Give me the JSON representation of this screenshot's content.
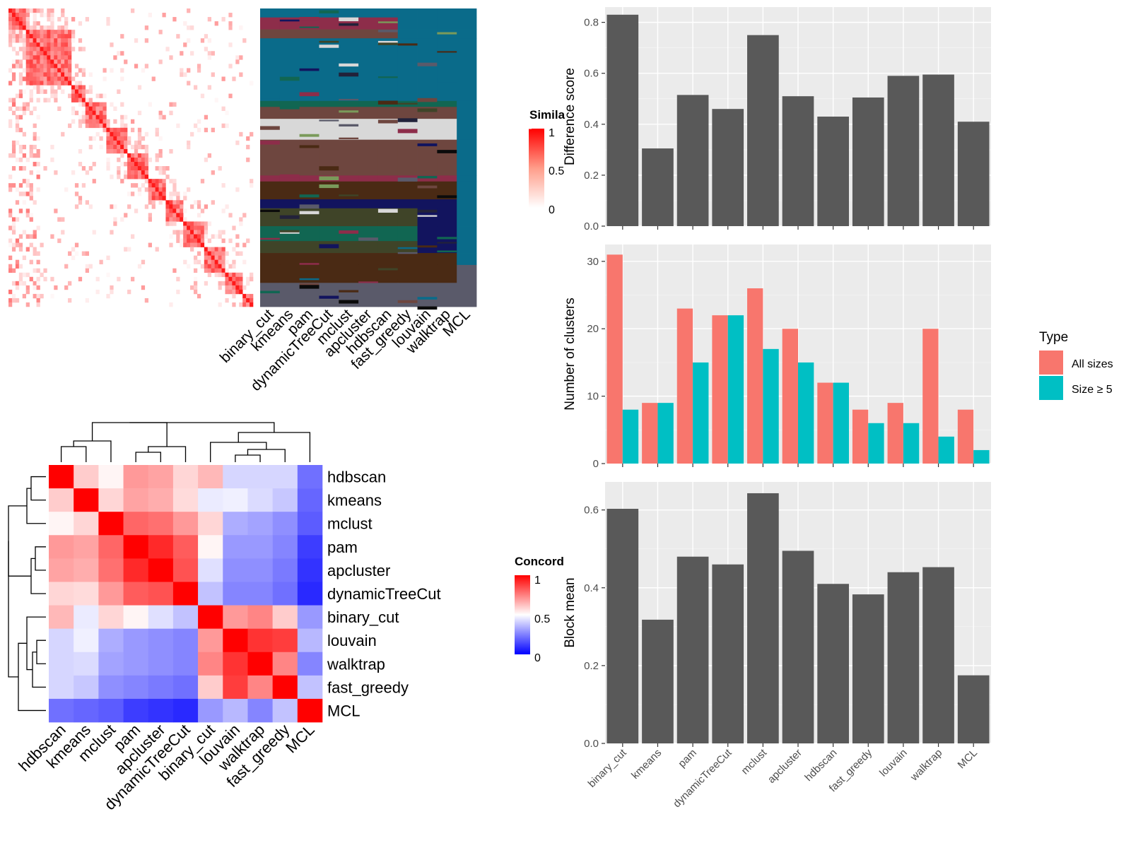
{
  "colors": {
    "panel_bg": "#ebebeb",
    "grid": "#ffffff",
    "bar_dark": "#595959",
    "all_sizes": "#F8766D",
    "size_ge5": "#00BFC4",
    "heat_red": "#ff0000",
    "heat_white": "#ffffff",
    "heat_blue": "#0000ff"
  },
  "similarity_legend": {
    "title": "Simila",
    "ticks": [
      "1",
      "0.5",
      "0"
    ]
  },
  "concordance_legend": {
    "title": "Concord",
    "ticks": [
      "1",
      "0.5",
      "0"
    ]
  },
  "chart_data": [
    {
      "type": "heatmap",
      "name": "similarity_matrix",
      "legend_title": "Simila",
      "scale": [
        0,
        0.5,
        1
      ],
      "description_note": ""
    },
    {
      "type": "heatmap",
      "name": "cluster_membership",
      "columns": [
        "binary_cut",
        "kmeans",
        "pam",
        "dynamicTreeCut",
        "mclust",
        "apcluster",
        "hdbscan",
        "fast_greedy",
        "louvain",
        "walktrap",
        "MCL"
      ]
    },
    {
      "type": "heatmap",
      "name": "concordance",
      "legend_title": "Concord",
      "rows": [
        "hdbscan",
        "kmeans",
        "mclust",
        "pam",
        "apcluster",
        "dynamicTreeCut",
        "binary_cut",
        "louvain",
        "walktrap",
        "fast_greedy",
        "MCL"
      ],
      "columns": [
        "hdbscan",
        "kmeans",
        "mclust",
        "pam",
        "apcluster",
        "dynamicTreeCut",
        "binary_cut",
        "louvain",
        "walktrap",
        "fast_greedy",
        "MCL"
      ],
      "values": [
        [
          1.0,
          0.6,
          0.52,
          0.7,
          0.68,
          0.58,
          0.64,
          0.42,
          0.42,
          0.42,
          0.22
        ],
        [
          0.6,
          1.0,
          0.58,
          0.68,
          0.66,
          0.57,
          0.46,
          0.47,
          0.43,
          0.39,
          0.2
        ],
        [
          0.52,
          0.58,
          1.0,
          0.8,
          0.78,
          0.7,
          0.58,
          0.34,
          0.32,
          0.28,
          0.18
        ],
        [
          0.7,
          0.68,
          0.8,
          1.0,
          0.92,
          0.82,
          0.52,
          0.3,
          0.3,
          0.26,
          0.12
        ],
        [
          0.68,
          0.66,
          0.78,
          0.92,
          1.0,
          0.84,
          0.44,
          0.28,
          0.28,
          0.24,
          0.1
        ],
        [
          0.58,
          0.57,
          0.7,
          0.82,
          0.84,
          1.0,
          0.38,
          0.26,
          0.26,
          0.22,
          0.08
        ],
        [
          0.64,
          0.46,
          0.58,
          0.52,
          0.44,
          0.38,
          1.0,
          0.7,
          0.74,
          0.6,
          0.3
        ],
        [
          0.42,
          0.47,
          0.34,
          0.3,
          0.28,
          0.26,
          0.7,
          1.0,
          0.9,
          0.88,
          0.36
        ],
        [
          0.42,
          0.43,
          0.32,
          0.3,
          0.28,
          0.26,
          0.74,
          0.9,
          1.0,
          0.74,
          0.26
        ],
        [
          0.42,
          0.39,
          0.28,
          0.26,
          0.24,
          0.22,
          0.6,
          0.88,
          0.74,
          1.0,
          0.38
        ],
        [
          0.22,
          0.2,
          0.18,
          0.12,
          0.1,
          0.08,
          0.3,
          0.36,
          0.26,
          0.38,
          1.0
        ]
      ],
      "scale": [
        0,
        0.5,
        1
      ]
    },
    {
      "type": "bar",
      "name": "difference_score",
      "categories": [
        "binary_cut",
        "kmeans",
        "pam",
        "dynamicTreeCut",
        "mclust",
        "apcluster",
        "hdbscan",
        "fast_greedy",
        "louvain",
        "walktrap",
        "MCL"
      ],
      "values": [
        0.83,
        0.305,
        0.515,
        0.46,
        0.75,
        0.51,
        0.43,
        0.505,
        0.59,
        0.595,
        0.41
      ],
      "ylabel": "Difference score",
      "ylim": [
        0,
        0.86
      ],
      "yticks": [
        "0.0",
        "0.2",
        "0.4",
        "0.6",
        "0.8"
      ],
      "grid": true
    },
    {
      "type": "bar",
      "name": "number_of_clusters",
      "categories": [
        "binary_cut",
        "kmeans",
        "pam",
        "dynamicTreeCut",
        "mclust",
        "apcluster",
        "hdbscan",
        "fast_greedy",
        "louvain",
        "walktrap",
        "MCL"
      ],
      "series": [
        {
          "name": "All sizes",
          "values": [
            31,
            9,
            23,
            22,
            26,
            20,
            12,
            8,
            9,
            20,
            8
          ]
        },
        {
          "name": "Size ≥ 5",
          "values": [
            8,
            9,
            15,
            22,
            17,
            15,
            12,
            6,
            6,
            4,
            2
          ]
        }
      ],
      "ylabel": "Number of clusters",
      "ylim": [
        0,
        32.5
      ],
      "yticks": [
        "0",
        "10",
        "20",
        "30"
      ],
      "legend_title": "Type",
      "legend_position": "right",
      "grid": true
    },
    {
      "type": "bar",
      "name": "block_mean",
      "categories": [
        "binary_cut",
        "kmeans",
        "pam",
        "dynamicTreeCut",
        "mclust",
        "apcluster",
        "hdbscan",
        "fast_greedy",
        "louvain",
        "walktrap",
        "MCL"
      ],
      "values": [
        0.603,
        0.318,
        0.48,
        0.46,
        0.643,
        0.495,
        0.41,
        0.383,
        0.44,
        0.453,
        0.175
      ],
      "ylabel": "Block mean",
      "ylim": [
        0,
        0.672
      ],
      "yticks": [
        "0.0",
        "0.2",
        "0.4",
        "0.6"
      ],
      "grid": true
    }
  ]
}
